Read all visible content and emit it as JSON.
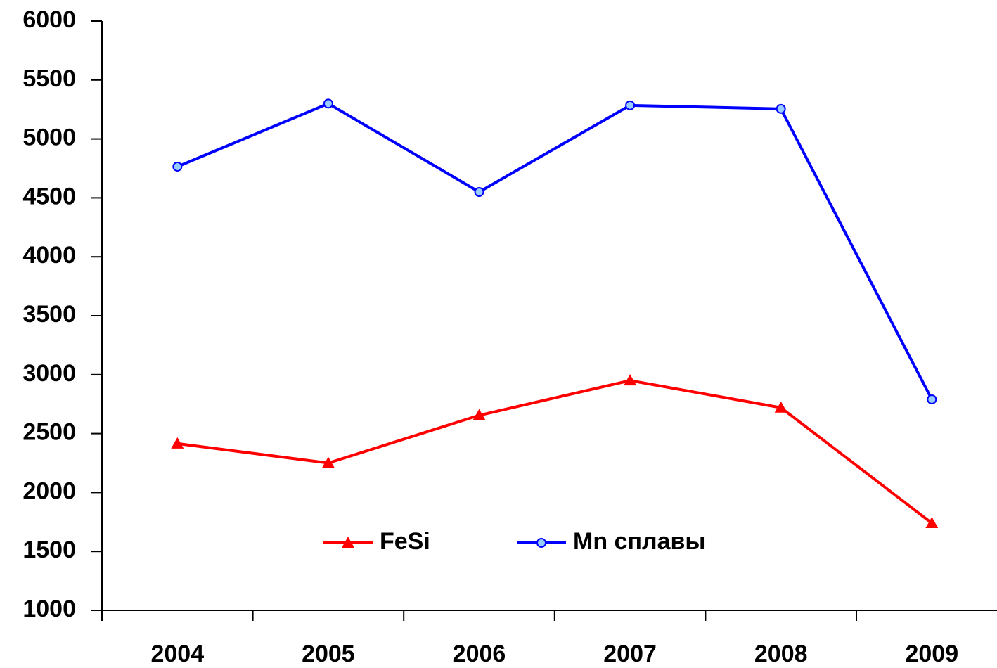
{
  "chart_data": {
    "type": "line",
    "categories": [
      "2004",
      "2005",
      "2006",
      "2007",
      "2008",
      "2009"
    ],
    "series": [
      {
        "name": "FeSi",
        "color": "#ff0000",
        "marker": "triangle",
        "values": [
          2415,
          2250,
          2655,
          2950,
          2720,
          1740
        ]
      },
      {
        "name": "Mn сплавы",
        "color": "#0000ff",
        "marker": "circle",
        "values": [
          4765,
          5300,
          4550,
          5285,
          5255,
          2790
        ]
      }
    ],
    "ylim": [
      1000,
      6000
    ],
    "yticks": [
      1000,
      1500,
      2000,
      2500,
      3000,
      3500,
      4000,
      4500,
      5000,
      5500,
      6000
    ],
    "grid": false,
    "legend": "lower center"
  }
}
